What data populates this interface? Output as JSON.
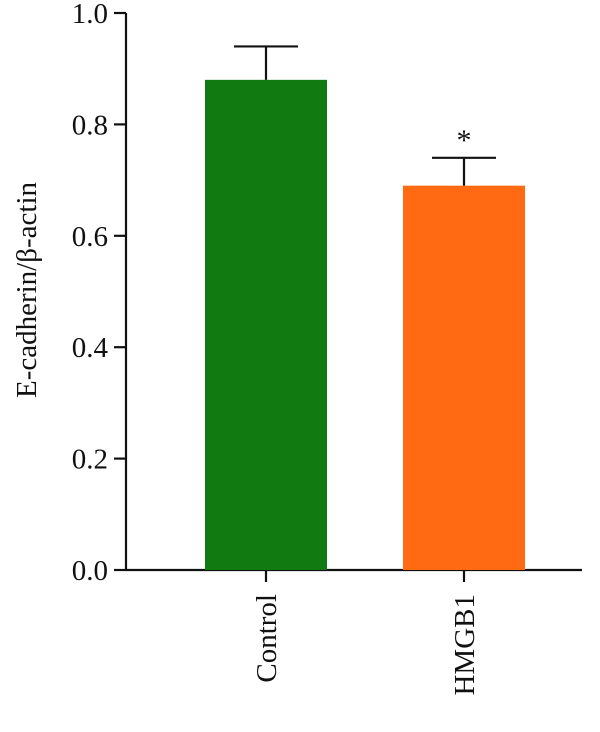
{
  "chart_data": {
    "type": "bar",
    "title": "",
    "xlabel": "",
    "ylabel": "E-cadherin/β-actin",
    "ylim": [
      0,
      1.0
    ],
    "yticks": [
      0.0,
      0.2,
      0.4,
      0.6,
      0.8,
      1.0
    ],
    "ytick_labels": [
      "0.0",
      "0.2",
      "0.4",
      "0.6",
      "0.8",
      "1.0"
    ],
    "categories": [
      "Control",
      "HMGB1"
    ],
    "values": [
      0.88,
      0.69
    ],
    "error_upper": [
      0.06,
      0.05
    ],
    "annotations": [
      "",
      "*"
    ],
    "colors": [
      "#117a11",
      "#ff6a13"
    ],
    "grid": false,
    "legend": "none"
  }
}
